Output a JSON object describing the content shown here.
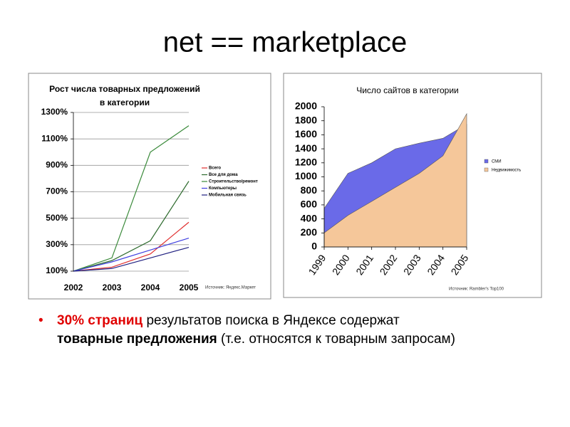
{
  "slide_title": "net == marketplace",
  "bullet": {
    "highlight": "30% страниц",
    "text1": "результатов поиска в Яндексе содержат",
    "bold": "товарные предложения",
    "text2": "(т.е. относятся к товарным запросам)"
  },
  "chart_data": [
    {
      "type": "line",
      "title": [
        "Рост числа товарных предложений",
        "в категории"
      ],
      "categories": [
        "2002",
        "2003",
        "2004",
        "2005"
      ],
      "series": [
        {
          "name": "Всего",
          "color": "#e03030",
          "values": [
            100,
            130,
            230,
            470
          ]
        },
        {
          "name": "Все для дома",
          "color": "#2e6b2e",
          "values": [
            100,
            180,
            330,
            780
          ]
        },
        {
          "name": "Строительство/ремонт",
          "color": "#3a8a3a",
          "values": [
            100,
            200,
            1000,
            1200
          ]
        },
        {
          "name": "Компьютеры",
          "color": "#4040e0",
          "values": [
            100,
            170,
            260,
            350
          ]
        },
        {
          "name": "Мобильная связь",
          "color": "#202080",
          "values": [
            100,
            120,
            200,
            280
          ]
        }
      ],
      "ylim": [
        100,
        1300
      ],
      "yticks": [
        {
          "value": 100,
          "label": "100%"
        },
        {
          "value": 300,
          "label": "300%"
        },
        {
          "value": 500,
          "label": "500%"
        },
        {
          "value": 700,
          "label": "700%"
        },
        {
          "value": 900,
          "label": "900%"
        },
        {
          "value": 1100,
          "label": "1100%"
        },
        {
          "value": 1300,
          "label": "1300%"
        }
      ],
      "grid": true,
      "legend": "right",
      "note": "Источник: Яндекс.Маркет"
    },
    {
      "type": "area",
      "title": "Число сайтов в категории",
      "categories": [
        "1999",
        "2000",
        "2001",
        "2002",
        "2003",
        "2004",
        "2005"
      ],
      "series": [
        {
          "name": "СМИ",
          "color": "#6a6ae8",
          "values": [
            550,
            1050,
            1200,
            1400,
            1480,
            1550,
            1750
          ]
        },
        {
          "name": "Недвижимость",
          "color": "#f5c79a",
          "values": [
            200,
            450,
            650,
            850,
            1050,
            1300,
            1900
          ]
        }
      ],
      "ylim": [
        0,
        2000
      ],
      "yticks": [
        0,
        200,
        400,
        600,
        800,
        1000,
        1200,
        1400,
        1600,
        1800,
        2000
      ],
      "grid": false,
      "legend": "right",
      "note": "Источник: Rambler's Top100"
    }
  ]
}
